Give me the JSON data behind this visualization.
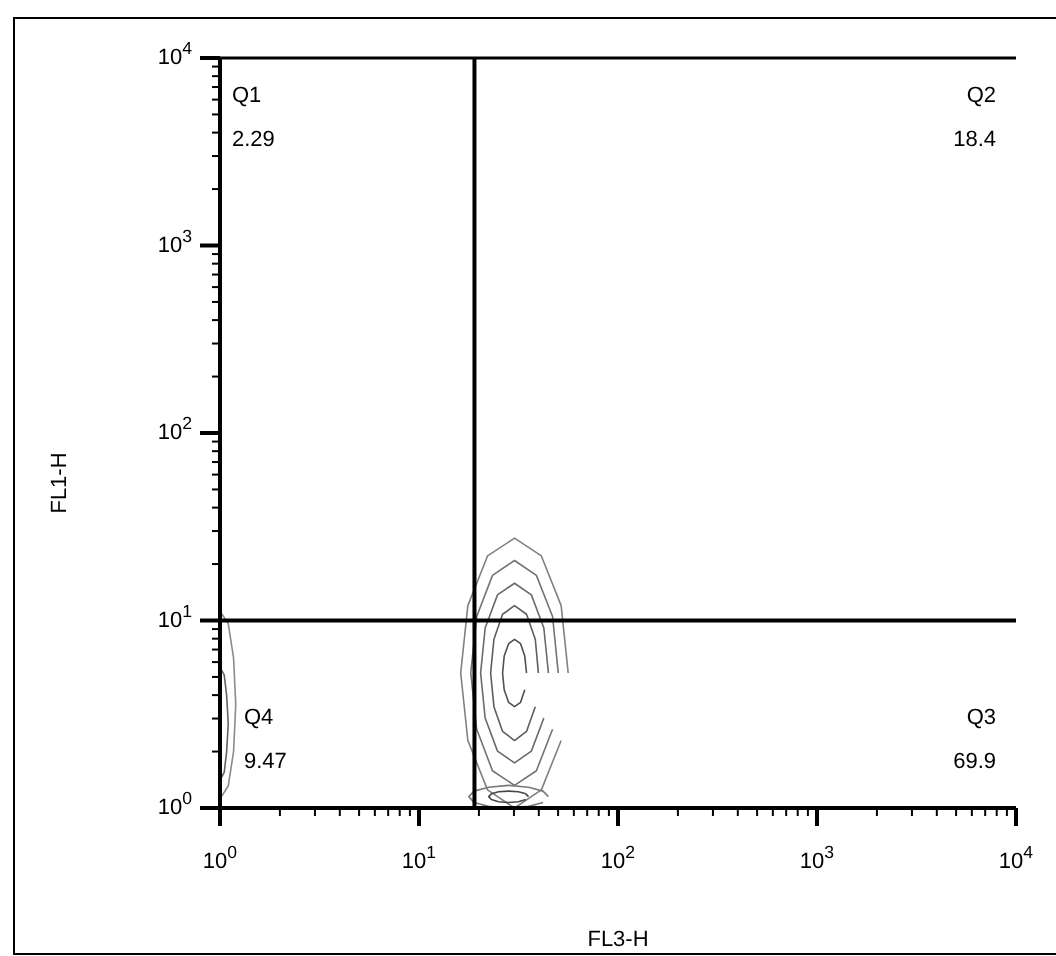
{
  "chart_data": {
    "type": "line",
    "xlabel": "FL3-H",
    "ylabel": "FL1-H",
    "log": "xy",
    "xlim": [
      1,
      10000
    ],
    "ylim": [
      1,
      10000
    ],
    "xticks": [
      {
        "value": 1,
        "label": "10$^{0}$"
      },
      {
        "value": 2,
        "label": null
      },
      {
        "value": 3,
        "label": null
      },
      {
        "value": 4,
        "label": null
      },
      {
        "value": 5,
        "label": null
      },
      {
        "value": 6,
        "label": null
      },
      {
        "value": 7,
        "label": null
      },
      {
        "value": 8,
        "label": null
      },
      {
        "value": 9,
        "label": null
      },
      {
        "value": 10,
        "label": "10$^{1}$"
      },
      {
        "value": 20,
        "label": null
      },
      {
        "value": 30,
        "label": null
      },
      {
        "value": 40,
        "label": null
      },
      {
        "value": 50,
        "label": null
      },
      {
        "value": 60,
        "label": null
      },
      {
        "value": 70,
        "label": null
      },
      {
        "value": 80,
        "label": null
      },
      {
        "value": 90,
        "label": null
      },
      {
        "value": 100,
        "label": "10$^{2}$"
      },
      {
        "value": 200,
        "label": null
      },
      {
        "value": 300,
        "label": null
      },
      {
        "value": 400,
        "label": null
      },
      {
        "value": 500,
        "label": null
      },
      {
        "value": 600,
        "label": null
      },
      {
        "value": 700,
        "label": null
      },
      {
        "value": 800,
        "label": null
      },
      {
        "value": 900,
        "label": null
      },
      {
        "value": 1000,
        "label": "10$^{3}$"
      },
      {
        "value": 2000,
        "label": null
      },
      {
        "value": 3000,
        "label": null
      },
      {
        "value": 4000,
        "label": null
      },
      {
        "value": 5000,
        "label": null
      },
      {
        "value": 6000,
        "label": null
      },
      {
        "value": 7000,
        "label": null
      },
      {
        "value": 8000,
        "label": null
      },
      {
        "value": 9000,
        "label": null
      },
      {
        "value": 10000,
        "label": "10$^{4}$"
      }
    ],
    "yticks": [
      {
        "value": 1,
        "label": "10$^{0}$"
      },
      {
        "value": 2,
        "label": null
      },
      {
        "value": 3,
        "label": null
      },
      {
        "value": 4,
        "label": null
      },
      {
        "value": 5,
        "label": null
      },
      {
        "value": 6,
        "label": null
      },
      {
        "value": 7,
        "label": null
      },
      {
        "value": 8,
        "label": null
      },
      {
        "value": 9,
        "label": null
      },
      {
        "value": 10,
        "label": "10$^{1}$"
      },
      {
        "value": 20,
        "label": null
      },
      {
        "value": 30,
        "label": null
      },
      {
        "value": 40,
        "label": null
      },
      {
        "value": 50,
        "label": null
      },
      {
        "value": 60,
        "label": null
      },
      {
        "value": 70,
        "label": null
      },
      {
        "value": 80,
        "label": null
      },
      {
        "value": 90,
        "label": null
      },
      {
        "value": 100,
        "label": "10$^{2}$"
      },
      {
        "value": 200,
        "label": null
      },
      {
        "value": 300,
        "label": null
      },
      {
        "value": 400,
        "label": null
      },
      {
        "value": 500,
        "label": null
      },
      {
        "value": 600,
        "label": null
      },
      {
        "value": 700,
        "label": null
      },
      {
        "value": 800,
        "label": null
      },
      {
        "value": 900,
        "label": null
      },
      {
        "value": 1000,
        "label": "10$^{3}$"
      },
      {
        "value": 2000,
        "label": null
      },
      {
        "value": 3000,
        "label": null
      },
      {
        "value": 4000,
        "label": null
      },
      {
        "value": 5000,
        "label": null
      },
      {
        "value": 6000,
        "label": null
      },
      {
        "value": 7000,
        "label": null
      },
      {
        "value": 8000,
        "label": null
      },
      {
        "value": 9000,
        "label": null
      },
      {
        "value": 10000,
        "label": "10$^{4}$"
      }
    ],
    "series": [
      {
        "color": "#808080",
        "x": [
          56.2,
          51.8,
          41.2,
          30.2,
          22.1,
          17.6,
          16.2,
          17.6,
          22.1,
          30.2,
          41.2,
          51.8
        ],
        "values": [
          5.25,
          12.0,
          22.1,
          27.5,
          22.1,
          12.0,
          5.25,
          2.29,
          1.25,
          1.0,
          1.25,
          2.29
        ]
      },
      {
        "color": "#737373",
        "x": [
          50.1,
          46.9,
          38.9,
          30.2,
          23.4,
          19.5,
          18.2,
          19.5,
          23.4,
          30.2,
          38.9,
          46.9
        ],
        "values": [
          5.25,
          10.5,
          17.4,
          20.9,
          17.4,
          10.5,
          5.25,
          2.63,
          1.58,
          1.32,
          1.58,
          2.63
        ]
      },
      {
        "color": "#6a6a6a",
        "x": [
          44.7,
          42.4,
          36.7,
          30.2,
          24.8,
          21.5,
          20.4,
          21.5,
          24.8,
          30.2,
          36.7,
          42.4
        ],
        "values": [
          5.25,
          9.12,
          13.7,
          15.8,
          13.7,
          9.12,
          5.25,
          3.02,
          2.01,
          1.74,
          2.01,
          3.02
        ]
      },
      {
        "color": "#5e5e5e",
        "x": [
          39.8,
          38.4,
          34.7,
          30.2,
          26.3,
          23.8,
          22.9,
          23.8,
          26.3,
          30.2,
          34.7,
          38.4
        ],
        "values": [
          5.25,
          7.94,
          10.8,
          12.0,
          10.8,
          7.94,
          5.25,
          3.47,
          2.56,
          2.29,
          2.56,
          3.47
        ]
      },
      {
        "color": "#505050",
        "x": [
          34.7,
          34.0,
          32.4,
          30.2,
          28.2,
          26.8,
          26.3,
          26.8,
          28.2,
          30.2,
          32.4,
          34.0
        ],
        "values": [
          5.25,
          6.46,
          7.52,
          7.94,
          7.52,
          6.46,
          5.25,
          4.27,
          3.66,
          3.47,
          3.66,
          4.27
        ]
      },
      {
        "color": "#7a7a7a",
        "x": [
          44.7,
          42.0,
          35.5,
          28.2,
          22.4,
          18.9,
          17.8,
          18.9,
          22.4,
          28.2,
          35.5,
          42.0
        ],
        "values": [
          1.15,
          1.23,
          1.29,
          1.32,
          1.29,
          1.23,
          1.15,
          1.07,
          1.02,
          1.0,
          1.02,
          1.07
        ]
      },
      {
        "color": "#484848",
        "x": [
          35.5,
          34.4,
          31.6,
          28.2,
          25.1,
          23.1,
          22.4,
          23.1,
          25.1,
          28.2,
          31.6,
          34.4
        ],
        "values": [
          1.15,
          1.19,
          1.22,
          1.23,
          1.22,
          1.19,
          1.15,
          1.11,
          1.08,
          1.07,
          1.08,
          1.11
        ]
      },
      {
        "color": "#8a8a8a",
        "x": [
          1,
          1.1,
          1.17,
          1.2,
          1.17,
          1.1,
          1
        ],
        "values": [
          1.12,
          1.31,
          2.0,
          3.55,
          6.31,
          9.62,
          11.2
        ]
      },
      {
        "color": "#626262",
        "x": [
          1,
          1.05,
          1.08,
          1.1,
          1.08,
          1.05,
          1
        ],
        "values": [
          1.41,
          1.55,
          2.0,
          2.82,
          3.98,
          5.13,
          5.62
        ]
      }
    ],
    "ref_lines": [
      {
        "axis": "x",
        "value": 19,
        "color": "#000000"
      },
      {
        "axis": "y",
        "value": 10,
        "color": "#000000"
      }
    ],
    "annotations": [
      "Q1",
      "2.29",
      "Q2",
      "18.4",
      "Q3",
      "69.9",
      "Q4",
      "9.47"
    ]
  }
}
